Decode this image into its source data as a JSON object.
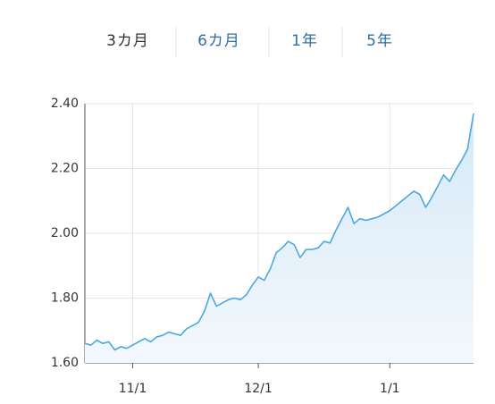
{
  "tabs": [
    "3カ月",
    "6カ月",
    "1年",
    "5年"
  ],
  "chart_data": {
    "type": "area",
    "categories": [
      null,
      null,
      null,
      null,
      null,
      null,
      null,
      null,
      "11/1",
      null,
      null,
      null,
      null,
      null,
      null,
      null,
      null,
      null,
      null,
      null,
      null,
      null,
      null,
      null,
      null,
      null,
      null,
      null,
      null,
      "12/1",
      null,
      null,
      null,
      null,
      null,
      null,
      null,
      null,
      null,
      null,
      null,
      null,
      null,
      null,
      null,
      null,
      null,
      null,
      null,
      null,
      null,
      "1/1",
      null,
      null,
      null,
      null,
      null,
      null,
      null,
      null,
      null,
      null,
      null,
      null,
      null,
      null
    ],
    "values": [
      1.66,
      1.655,
      1.67,
      1.66,
      1.665,
      1.64,
      1.65,
      1.645,
      1.655,
      1.665,
      1.675,
      1.665,
      1.68,
      1.685,
      1.695,
      1.69,
      1.685,
      1.705,
      1.715,
      1.725,
      1.76,
      1.815,
      1.775,
      1.785,
      1.795,
      1.8,
      1.795,
      1.81,
      1.84,
      1.865,
      1.855,
      1.89,
      1.94,
      1.955,
      1.975,
      1.965,
      1.925,
      1.95,
      1.95,
      1.955,
      1.975,
      1.97,
      2.01,
      2.045,
      2.08,
      2.03,
      2.045,
      2.04,
      2.045,
      2.05,
      2.06,
      2.07,
      2.085,
      2.1,
      2.115,
      2.13,
      2.12,
      2.08,
      2.11,
      2.145,
      2.18,
      2.16,
      2.195,
      2.225,
      2.26,
      2.37
    ],
    "color": "#4aa8e0",
    "ylim": [
      1.6,
      2.4
    ],
    "yticks": [
      {
        "value": 1.6,
        "label": "1.60"
      },
      {
        "value": 1.8,
        "label": "1.80"
      },
      {
        "value": 2.0,
        "label": "2.00"
      },
      {
        "value": 2.2,
        "label": "2.20"
      },
      {
        "value": 2.4,
        "label": "2.40"
      }
    ],
    "grid": true
  }
}
